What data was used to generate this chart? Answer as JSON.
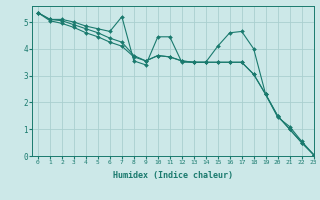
{
  "xlabel": "Humidex (Indice chaleur)",
  "ylabel": "",
  "background_color": "#cce8e8",
  "line_color": "#1a7a6e",
  "grid_color": "#aacfcf",
  "xlim": [
    -0.5,
    23
  ],
  "ylim": [
    0,
    5.6
  ],
  "yticks": [
    0,
    1,
    2,
    3,
    4,
    5
  ],
  "xticks": [
    0,
    1,
    2,
    3,
    4,
    5,
    6,
    7,
    8,
    9,
    10,
    11,
    12,
    13,
    14,
    15,
    16,
    17,
    18,
    19,
    20,
    21,
    22,
    23
  ],
  "series": [
    [
      5.35,
      5.1,
      5.1,
      5.0,
      4.85,
      4.75,
      4.65,
      5.2,
      3.55,
      3.4,
      4.45,
      4.45,
      3.5,
      3.5,
      3.5,
      4.1,
      4.6,
      4.65,
      4.0,
      2.3,
      1.45,
      1.1,
      0.55,
      0.05
    ],
    [
      5.35,
      5.1,
      5.05,
      4.9,
      4.75,
      4.6,
      4.4,
      4.25,
      3.75,
      3.55,
      3.75,
      3.7,
      3.55,
      3.5,
      3.5,
      3.5,
      3.5,
      3.5,
      3.05,
      2.3,
      1.5,
      1.0,
      0.5,
      0.05
    ],
    [
      5.35,
      5.05,
      4.95,
      4.8,
      4.6,
      4.45,
      4.25,
      4.1,
      3.7,
      3.55,
      3.75,
      3.7,
      3.55,
      3.5,
      3.5,
      3.5,
      3.5,
      3.5,
      3.05,
      2.3,
      1.5,
      1.0,
      0.5,
      0.05
    ]
  ]
}
